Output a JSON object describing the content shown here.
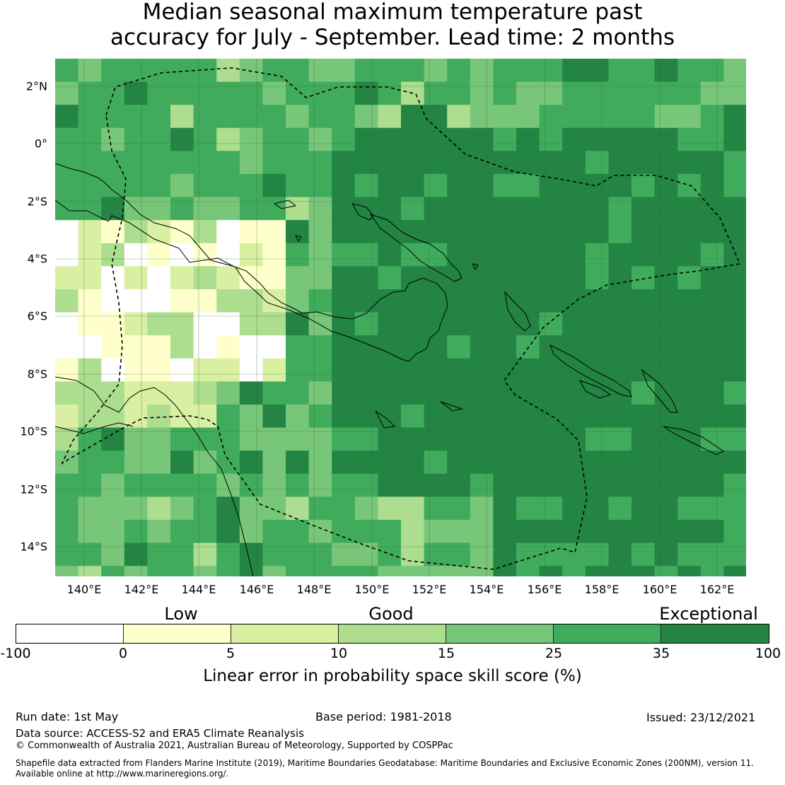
{
  "title": {
    "line1": "Median seasonal maximum temperature past",
    "line2": "accuracy for July - September. Lead time: 2 months"
  },
  "map": {
    "lat_ticks": [
      "2°N",
      "0°",
      "2°S",
      "4°S",
      "6°S",
      "8°S",
      "10°S",
      "12°S",
      "14°S"
    ],
    "lon_ticks": [
      "140°E",
      "142°E",
      "144°E",
      "146°E",
      "148°E",
      "150°E",
      "152°E",
      "154°E",
      "156°E",
      "158°E",
      "160°E",
      "162°E"
    ],
    "extent": {
      "lon_range": [
        139,
        163
      ],
      "lat_range": [
        -15,
        3
      ]
    },
    "grid_cell_deg": 0.8,
    "features": [
      "land-coastlines",
      "maritime-boundary-dashed",
      "graticule-2deg"
    ]
  },
  "legend": {
    "categories": [
      "Low",
      "Good",
      "Exceptional"
    ],
    "ticks": [
      "-100",
      "0",
      "5",
      "10",
      "15",
      "25",
      "35",
      "100"
    ],
    "label": "Linear error in probability space skill score (%)",
    "bins": [
      {
        "range": "-100 to 0",
        "color": "#ffffff"
      },
      {
        "range": "0 to 5",
        "color": "#ffffcc"
      },
      {
        "range": "5 to 10",
        "color": "#d9f0a3"
      },
      {
        "range": "10 to 15",
        "color": "#addd8e"
      },
      {
        "range": "15 to 25",
        "color": "#78c679"
      },
      {
        "range": "25 to 35",
        "color": "#41ab5d"
      },
      {
        "range": "35 to 100",
        "color": "#238443"
      }
    ]
  },
  "footer": {
    "run_date": "Run date: 1st May",
    "base_period": "Base period: 1981-2018",
    "issued": "Issued: 23/12/2021",
    "data_source": "Data source: ACCESS-S2 and ERA5 Climate Reanalysis",
    "copyright": "© Commonwealth of Australia 2021, Australian Bureau of Meteorology, Supported by COSPPac",
    "shapefile_line1": "Shapefile data extracted from Flanders Marine Institute (2019), Maritime Boundaries Geodatabase: Maritime Boundaries and Exclusive Economic Zones (200NM), version 11.",
    "shapefile_line2": "Available online at http://www.marineregions.org/."
  }
}
